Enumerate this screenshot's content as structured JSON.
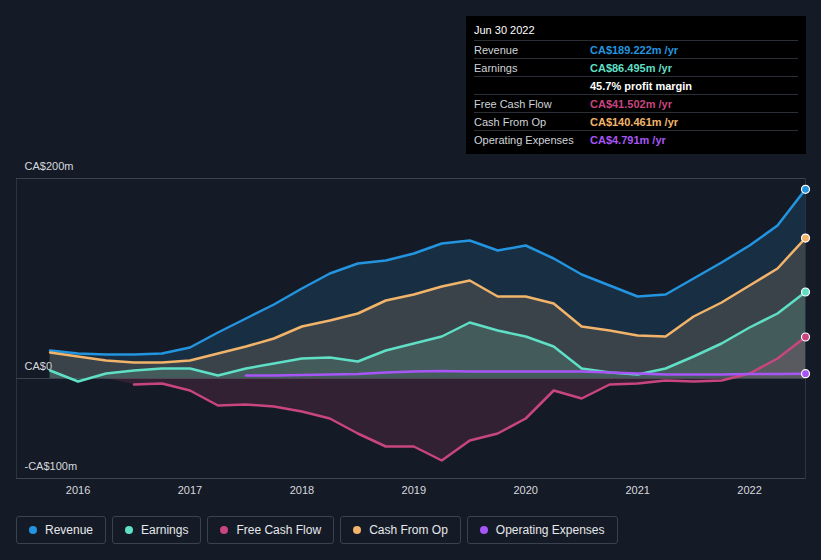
{
  "chart_data": {
    "type": "area",
    "x": [
      2015.75,
      2016.0,
      2016.25,
      2016.5,
      2016.75,
      2017.0,
      2017.25,
      2017.5,
      2017.75,
      2018.0,
      2018.25,
      2018.5,
      2018.75,
      2019.0,
      2019.25,
      2019.5,
      2019.75,
      2020.0,
      2020.25,
      2020.5,
      2020.75,
      2021.0,
      2021.25,
      2021.5,
      2021.75,
      2022.0,
      2022.25,
      2022.5
    ],
    "xlim": [
      2015.45,
      2022.5
    ],
    "xticks": [
      2016,
      2017,
      2018,
      2019,
      2020,
      2021,
      2022
    ],
    "ylim": [
      -100,
      200
    ],
    "yticks": [
      {
        "value": -100,
        "label": "-CA$100m"
      },
      {
        "value": 0,
        "label": "CA$0"
      },
      {
        "value": 200,
        "label": "CA$200m"
      }
    ],
    "grid": true,
    "legend": "bottom-left",
    "series": [
      {
        "name": "Revenue",
        "color": "#2394df",
        "type": "area",
        "values": [
          28,
          25,
          24,
          24,
          25,
          31,
          46,
          60,
          74,
          90,
          105,
          115,
          118,
          125,
          135,
          138,
          128,
          133,
          120,
          104,
          93,
          82,
          84,
          100,
          116,
          133,
          153,
          189.222
        ]
      },
      {
        "name": "Earnings",
        "color": "#5fdfc5",
        "type": "area",
        "values": [
          8,
          -3,
          5,
          8,
          10,
          10,
          3,
          10,
          15,
          20,
          21,
          17,
          28,
          35,
          42,
          56,
          48,
          42,
          32,
          10,
          6,
          4,
          10,
          22,
          35,
          51,
          65,
          86.495
        ]
      },
      {
        "name": "Free Cash Flow",
        "color": "#c8457f",
        "type": "area",
        "values": [
          null,
          null,
          null,
          -6,
          -5,
          -12,
          -27,
          -26,
          -28,
          -33,
          -40,
          -55,
          -68,
          -68,
          -82,
          -62,
          -55,
          -40,
          -12,
          -20,
          -6,
          -5,
          -2,
          -3,
          -2,
          5,
          20,
          41.502
        ]
      },
      {
        "name": "Cash From Op",
        "color": "#f2b46a",
        "type": "area",
        "values": [
          26,
          22,
          18,
          16,
          16,
          18,
          25,
          32,
          40,
          52,
          58,
          65,
          78,
          84,
          92,
          98,
          82,
          82,
          75,
          52,
          48,
          43,
          42,
          62,
          76,
          93,
          110,
          140.461
        ]
      },
      {
        "name": "Operating Expenses",
        "color": "#a855f7",
        "type": "line",
        "values": [
          null,
          null,
          null,
          null,
          null,
          null,
          null,
          3,
          3,
          3.5,
          4,
          4.5,
          6,
          7,
          7.5,
          7,
          7,
          7,
          7,
          7,
          6,
          5,
          4,
          4,
          4,
          4.5,
          4.5,
          4.791
        ]
      }
    ],
    "annotations": {
      "title": "Jun 30 2022",
      "rows": [
        {
          "label": "Revenue",
          "value": "CA$189.222m /yr",
          "color": "#2394df"
        },
        {
          "label": "Earnings",
          "value": "CA$86.495m /yr",
          "color": "#5fdfc5"
        },
        {
          "label": null,
          "value": "45.7% profit margin",
          "color": "#ffffff"
        },
        {
          "label": "Free Cash Flow",
          "value": "CA$41.502m /yr",
          "color": "#c8457f"
        },
        {
          "label": "Cash From Op",
          "value": "CA$140.461m /yr",
          "color": "#f2b46a"
        },
        {
          "label": "Operating Expenses",
          "value": "CA$4.791m /yr",
          "color": "#a855f7"
        }
      ]
    }
  }
}
